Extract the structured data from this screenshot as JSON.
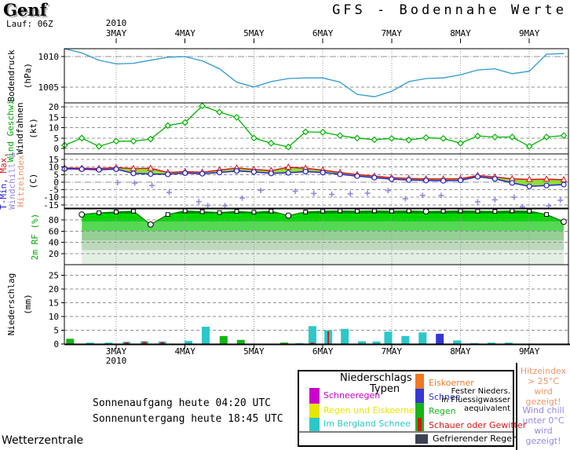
{
  "header": {
    "station": "Genf",
    "run_label": "Lauf: 06Z",
    "title": "GFS - Bodennahe Werte"
  },
  "x_axis": {
    "year_label": "2010",
    "day_labels": [
      "3MAY",
      "4MAY",
      "5MAY",
      "6MAY",
      "7MAY",
      "8MAY",
      "9MAY"
    ]
  },
  "footer": {
    "sunrise": "Sonnenaufgang heute 04:20 UTC",
    "sunset": "Sonnenuntergang heute 18:45 UTC",
    "site": "Wetterzentrale"
  },
  "side_notes": {
    "heat": {
      "lines": [
        "Hitzeindex",
        "> 25°C",
        "wird gezeigt!"
      ],
      "color": "#f09468"
    },
    "chill": {
      "lines": [
        "Wind chill",
        "unter 0°C",
        "wird gezeigt!"
      ],
      "color": "#9488e0"
    }
  },
  "legend": {
    "title_line1": "Niederschlags",
    "title_line2": "Typen",
    "left_items": [
      {
        "label": "Schneeregen",
        "color": "#cc00cc"
      },
      {
        "label": "Regen und Eiskoerner",
        "color": "#e6e600"
      },
      {
        "label": "Im Bergland Schnee",
        "color": "#2cc8c8"
      }
    ],
    "right_stack": [
      {
        "label": "Eiskoerner",
        "color": "#f07820"
      },
      {
        "label": "Schnee",
        "color": "#3535d8"
      },
      {
        "label": "Regen",
        "color": "#15b515"
      }
    ],
    "storm_item": {
      "label": "Schauer oder Gewitter",
      "color": "#d81515"
    },
    "equiv_note_lines": [
      "Fester Nieders.",
      "in Fluessigwasser",
      "aequivalent"
    ],
    "freezing_item": {
      "label": "Gefrierender Regen",
      "color": "#3d4252"
    }
  },
  "chart_data": [
    {
      "id": "pressure",
      "type": "line",
      "color": "#2e9ad0",
      "x_start_day": -0.75,
      "x_step_day": 0.25,
      "ylim": [
        1002.4,
        1011.3
      ],
      "yticks": [
        1010,
        1005
      ],
      "labels": [
        {
          "text": "Bodendruck",
          "color": "#000000"
        },
        {
          "text": "(hPa)",
          "color": "#000000"
        }
      ],
      "values": [
        1011.3,
        1010.6,
        1009.4,
        1008.8,
        1008.9,
        1009.4,
        1009.9,
        1010.0,
        1009.3,
        1008.0,
        1005.8,
        1005.0,
        1005.9,
        1006.4,
        1006.5,
        1006.5,
        1005.8,
        1003.8,
        1003.4,
        1004.3,
        1005.9,
        1006.4,
        1006.5,
        1007.0,
        1007.8,
        1008.0,
        1007.2,
        1007.6,
        1010.4,
        1010.5
      ]
    },
    {
      "id": "wind",
      "type": "line",
      "color": "#00b400",
      "marker": "diamond",
      "x_start_day": -0.75,
      "x_step_day": 0.25,
      "ylim": [
        -2.65,
        21.95
      ],
      "yticks": [
        20,
        15,
        10,
        5,
        0
      ],
      "labels": [
        {
          "text": "Wind Geschwi.",
          "color": "#00aa00"
        },
        {
          "text": "Windfahnen",
          "color": "#000000"
        },
        {
          "text": "(kt)",
          "color": "#000000"
        }
      ],
      "values": [
        1.5,
        5,
        1,
        3.5,
        3.5,
        4.5,
        11,
        12.5,
        20.5,
        17.5,
        15,
        5,
        2.5,
        0.7,
        8,
        7.8,
        6.2,
        5,
        4.2,
        4.8,
        4,
        5.2,
        4.8,
        2.5,
        6,
        5.5,
        5.5,
        1,
        5.5,
        6.2
      ]
    },
    {
      "id": "temperature",
      "type": "band",
      "x_start_day": -0.75,
      "x_step_day": 0.25,
      "ylim": [
        -17.2,
        18.7
      ],
      "yticks": [
        15,
        10,
        5,
        0,
        -5,
        -10,
        -15
      ],
      "max_color": "#d81515",
      "min_color": "#2525cc",
      "fill_color": "#93dc3a",
      "windchill_color": "#9488e0",
      "labels": [
        {
          "segments": [
            {
              "text": "T-Min, ",
              "color": "#2525cc"
            },
            {
              "text": "Max,",
              "color": "#d81515"
            }
          ]
        },
        {
          "text": "Windchill &",
          "color": "#9488e0"
        },
        {
          "text": "Hitzeindex",
          "color": "#f09468"
        },
        {
          "text": "(C)",
          "color": "#000000"
        }
      ],
      "tmax": [
        9.4,
        9.2,
        9.0,
        9.6,
        9.0,
        9.2,
        6.4,
        7.0,
        6.6,
        8.0,
        9.4,
        8.4,
        7.6,
        9.9,
        9.2,
        8.0,
        6.4,
        5.0,
        4.0,
        3.0,
        2.4,
        2.2,
        2.1,
        2.3,
        4.4,
        3.4,
        2.2,
        1.8,
        2.0,
        1.6
      ],
      "tmin": [
        8.8,
        8.6,
        8.2,
        8.6,
        5.8,
        5.4,
        5.2,
        6.0,
        5.6,
        6.4,
        7.4,
        6.8,
        5.8,
        6.2,
        7.0,
        6.4,
        5.2,
        4.0,
        3.0,
        2.0,
        1.4,
        1.1,
        0.9,
        1.2,
        3.6,
        2.2,
        -0.5,
        -2.8,
        -2.2,
        -1.6
      ],
      "windchill": [
        [
          0.02,
          -0.3
        ],
        [
          0.27,
          -0.6
        ],
        [
          0.52,
          -2.2
        ],
        [
          0.77,
          -6.8
        ],
        [
          1.2,
          -12.9
        ],
        [
          1.33,
          -15.5
        ],
        [
          1.58,
          -15.6
        ],
        [
          1.83,
          -10.5
        ],
        [
          2.1,
          -5.5
        ],
        [
          2.6,
          -6.0
        ],
        [
          2.87,
          -7.5
        ],
        [
          3.13,
          -8.1
        ],
        [
          3.4,
          -7.7
        ],
        [
          3.65,
          -7.3
        ],
        [
          3.95,
          -5.6
        ],
        [
          4.2,
          -11.0
        ],
        [
          4.45,
          -8.8
        ],
        [
          4.72,
          -8.8
        ],
        [
          5.25,
          -13.0
        ],
        [
          5.5,
          -11.7
        ],
        [
          5.78,
          -10.0
        ],
        [
          5.9,
          -16.3
        ],
        [
          6.28,
          -15.8
        ],
        [
          6.45,
          -12.0
        ]
      ]
    },
    {
      "id": "humidity",
      "type": "area",
      "x_start_day": -0.5,
      "x_step_day": 0.25,
      "ylim": [
        0,
        100
      ],
      "yticks": [
        80,
        60,
        40,
        20
      ],
      "edge_color": "#007c00",
      "gradient": [
        "#008c00",
        "#00d800",
        "#55d855",
        "#96cf96",
        "#bcd9bc",
        "#e4efe4"
      ],
      "labels": [
        {
          "text": "2m RF (%)",
          "color": "#00aa00"
        }
      ],
      "values": [
        90,
        93,
        94.5,
        96,
        72,
        90,
        96.5,
        95,
        93.5,
        95.5,
        94,
        96,
        88,
        94.5,
        96,
        96.5,
        96,
        96.5,
        96,
        96.5,
        95.5,
        96,
        96.5,
        96,
        95.5,
        96.5,
        96,
        90,
        77
      ]
    },
    {
      "id": "precipitation",
      "type": "bar",
      "ylim": [
        0,
        28.9
      ],
      "yticks": [
        25,
        20,
        15,
        10,
        5,
        0
      ],
      "labels": [
        {
          "text": "Niederschlag",
          "color": "#000000"
        },
        {
          "text": "(mm)",
          "color": "#000000"
        }
      ],
      "bars": [
        {
          "d": -0.67,
          "mm": 1.9,
          "color": "#15b515"
        },
        {
          "d": -0.38,
          "mm": 0.5,
          "color": "#2cc8c8"
        },
        {
          "d": -0.11,
          "mm": 0.5,
          "color": "#2cc8c8"
        },
        {
          "d": 0.15,
          "mm": 0.8,
          "color": "#2cc8c8",
          "inner_mm": 0.6,
          "inner_color": "#d81515"
        },
        {
          "d": 0.41,
          "mm": 1.0,
          "color": "#2cc8c8",
          "inner_mm": 0.8,
          "inner_color": "#d81515"
        },
        {
          "d": 0.67,
          "mm": 0.9,
          "color": "#2cc8c8",
          "inner_mm": 0.7,
          "inner_color": "#d81515"
        },
        {
          "d": 1.05,
          "mm": 1.1,
          "color": "#2cc8c8"
        },
        {
          "d": 1.3,
          "mm": 6.3,
          "color": "#2cc8c8"
        },
        {
          "d": 1.56,
          "mm": 2.9,
          "color": "#15b515"
        },
        {
          "d": 1.81,
          "mm": 1.5,
          "color": "#15b515"
        },
        {
          "d": 2.44,
          "mm": 0.5,
          "color": "#15b515"
        },
        {
          "d": 2.66,
          "mm": 0.3,
          "color": "#2cc8c8"
        },
        {
          "d": 2.85,
          "mm": 6.5,
          "color": "#2cc8c8",
          "inner_mm": 0.5,
          "inner_color": "#d81515"
        },
        {
          "d": 3.08,
          "mm": 5.0,
          "color": "#2cc8c8",
          "inner_mm": 4.6,
          "inner_color": "#d81515",
          "inner_thin": true
        },
        {
          "d": 3.32,
          "mm": 5.5,
          "color": "#2cc8c8"
        },
        {
          "d": 3.57,
          "mm": 1.0,
          "color": "#2cc8c8"
        },
        {
          "d": 3.78,
          "mm": 0.9,
          "color": "#2cc8c8"
        },
        {
          "d": 3.95,
          "mm": 4.5,
          "color": "#2cc8c8"
        },
        {
          "d": 4.2,
          "mm": 2.9,
          "color": "#2cc8c8"
        },
        {
          "d": 4.45,
          "mm": 4.2,
          "color": "#2cc8c8"
        },
        {
          "d": 4.7,
          "mm": 3.7,
          "color": "#3535d8"
        },
        {
          "d": 4.95,
          "mm": 1.3,
          "color": "#2cc8c8"
        },
        {
          "d": 5.2,
          "mm": 0.3,
          "color": "#2cc8c8"
        },
        {
          "d": 5.45,
          "mm": 0.5,
          "color": "#2cc8c8"
        },
        {
          "d": 5.7,
          "mm": 0.5,
          "color": "#2cc8c8"
        }
      ]
    }
  ]
}
